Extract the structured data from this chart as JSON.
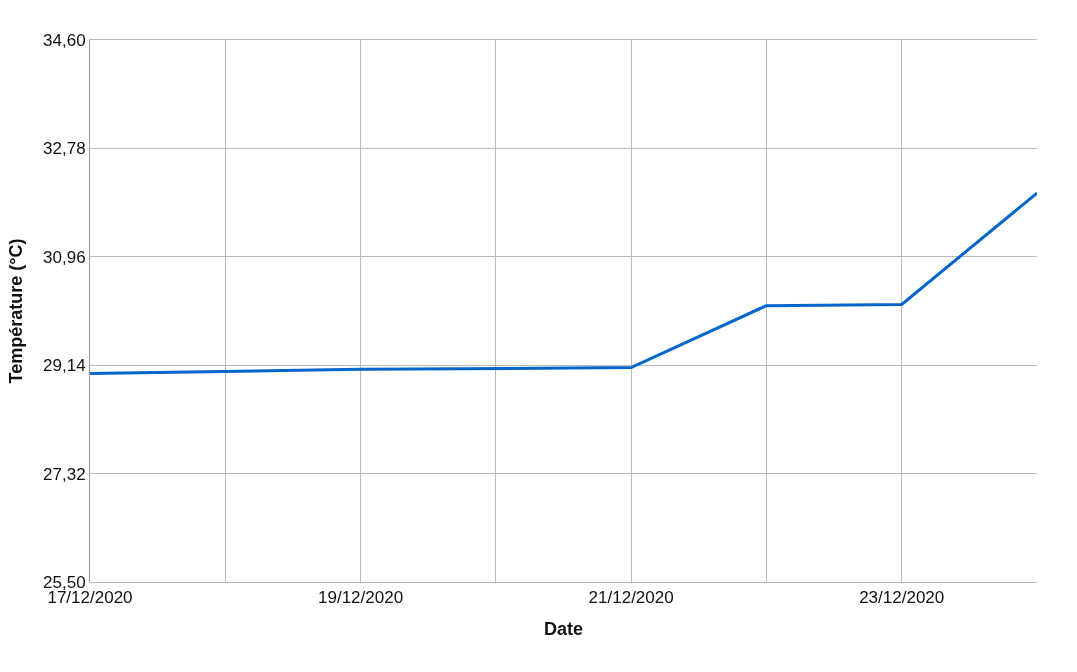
{
  "chart_data": {
    "type": "line",
    "xlabel": "Date",
    "ylabel": "Température (°C)",
    "x": [
      "2020-12-17",
      "2020-12-19",
      "2020-12-21",
      "2020-12-22",
      "2020-12-23",
      "2020-12-24"
    ],
    "series": [
      {
        "color": "#0066cc",
        "values": [
          29.0,
          29.07,
          29.1,
          30.14,
          30.16,
          32.03
        ]
      }
    ],
    "xlim": [
      "2020-12-17",
      "2020-12-24"
    ],
    "xticks": [
      {
        "value": "2020-12-17",
        "label": "17/12/2020"
      },
      {
        "value": "2020-12-18",
        "label": null
      },
      {
        "value": "2020-12-19",
        "label": "19/12/2020"
      },
      {
        "value": "2020-12-20",
        "label": null
      },
      {
        "value": "2020-12-21",
        "label": "21/12/2020"
      },
      {
        "value": "2020-12-22",
        "label": null
      },
      {
        "value": "2020-12-23",
        "label": "23/12/2020"
      }
    ],
    "ylim": [
      25.5,
      34.6
    ],
    "yticks": [
      {
        "value": 25.5,
        "label": "25,50"
      },
      {
        "value": 27.32,
        "label": "27,32"
      },
      {
        "value": 29.14,
        "label": "29,14"
      },
      {
        "value": 30.96,
        "label": "30,96"
      },
      {
        "value": 32.78,
        "label": "32,78"
      },
      {
        "value": 34.6,
        "label": "34,60"
      }
    ],
    "grid": true,
    "marker": "none",
    "line_style": "solid"
  }
}
